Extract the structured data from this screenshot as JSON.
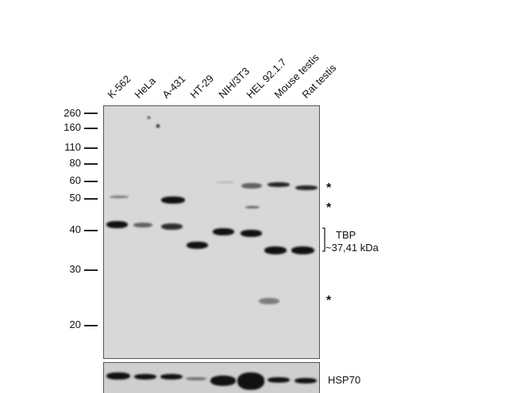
{
  "lanes": [
    "K-562",
    "HeLa",
    "A-431",
    "HT-29",
    "NIH/3T3",
    "HEL 92.1.7",
    "Mouse testis",
    "Rat testis"
  ],
  "markers_kda": [
    "260",
    "160",
    "110",
    "80",
    "60",
    "50",
    "40",
    "30",
    "20"
  ],
  "annotations": {
    "asterisk": "*",
    "target_name": "TBP",
    "target_size": "~37,41 kDa",
    "loading_control": "HSP70"
  }
}
